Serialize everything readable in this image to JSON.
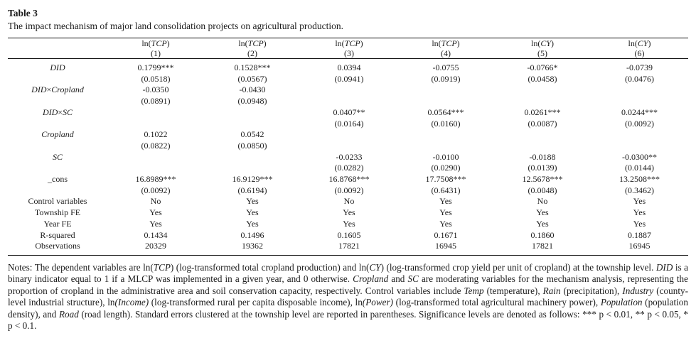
{
  "title": "Table 3",
  "caption": "The impact mechanism of major land consolidation projects on agricultural production.",
  "table": {
    "columns": [
      {
        "label": "ln({{TCP}})",
        "num": "(1)"
      },
      {
        "label": "ln({{TCP}})",
        "num": "(2)"
      },
      {
        "label": "ln({{TCP}})",
        "num": "(3)"
      },
      {
        "label": "ln({{TCP}})",
        "num": "(4)"
      },
      {
        "label": "ln({{CY}})",
        "num": "(5)"
      },
      {
        "label": "ln({{CY}})",
        "num": "(6)"
      }
    ],
    "rows": [
      {
        "label": "{{DID}}",
        "c": [
          "0.1799***",
          "0.1528***",
          "0.0394",
          "-0.0755",
          "-0.0766*",
          "-0.0739"
        ]
      },
      {
        "label": "",
        "c": [
          "(0.0518)",
          "(0.0567)",
          "(0.0941)",
          "(0.0919)",
          "(0.0458)",
          "(0.0476)"
        ]
      },
      {
        "label": "{{DID}}×{{Cropland}}",
        "c": [
          "-0.0350",
          "-0.0430",
          "",
          "",
          "",
          ""
        ]
      },
      {
        "label": "",
        "c": [
          "(0.0891)",
          "(0.0948)",
          "",
          "",
          "",
          ""
        ]
      },
      {
        "label": "{{DID}}×{{SC}}",
        "c": [
          "",
          "",
          "0.0407**",
          "0.0564***",
          "0.0261***",
          "0.0244***"
        ]
      },
      {
        "label": "",
        "c": [
          "",
          "",
          "(0.0164)",
          "(0.0160)",
          "(0.0087)",
          "(0.0092)"
        ]
      },
      {
        "label": "{{Cropland}}",
        "c": [
          "0.1022",
          "0.0542",
          "",
          "",
          "",
          ""
        ]
      },
      {
        "label": "",
        "c": [
          "(0.0822)",
          "(0.0850)",
          "",
          "",
          "",
          ""
        ]
      },
      {
        "label": "{{SC}}",
        "c": [
          "",
          "",
          "-0.0233",
          "-0.0100",
          "-0.0188",
          "-0.0300**"
        ]
      },
      {
        "label": "",
        "c": [
          "",
          "",
          "(0.0282)",
          "(0.0290)",
          "(0.0139)",
          "(0.0144)"
        ]
      },
      {
        "label": "_cons",
        "c": [
          "16.8989***",
          "16.9129***",
          "16.8768***",
          "17.7508***",
          "12.5678***",
          "13.2508***"
        ]
      },
      {
        "label": "",
        "c": [
          "(0.0092)",
          "(0.6194)",
          "(0.0092)",
          "(0.6431)",
          "(0.0048)",
          "(0.3462)"
        ]
      },
      {
        "label": "Control variables",
        "c": [
          "No",
          "Yes",
          "No",
          "Yes",
          "No",
          "Yes"
        ]
      },
      {
        "label": "Township FE",
        "c": [
          "Yes",
          "Yes",
          "Yes",
          "Yes",
          "Yes",
          "Yes"
        ]
      },
      {
        "label": "Year FE",
        "c": [
          "Yes",
          "Yes",
          "Yes",
          "Yes",
          "Yes",
          "Yes"
        ]
      },
      {
        "label": "R-squared",
        "c": [
          "0.1434",
          "0.1496",
          "0.1605",
          "0.1671",
          "0.1860",
          "0.1887"
        ]
      },
      {
        "label": "Observations",
        "c": [
          "20329",
          "19362",
          "17821",
          "16945",
          "17821",
          "16945"
        ]
      }
    ]
  },
  "notes": "Notes: The dependent variables are ln({{TCP}}) (log-transformed total cropland production) and ln({{CY}}) (log-transformed crop yield per unit of cropland) at the township level. {{DID}} is a binary indicator equal to 1 if a MLCP was implemented in a given year, and 0 otherwise. {{Cropland}} and {{SC}} are moderating variables for the mechanism analysis, representing the proportion of cropland in the administrative area and soil conservation capacity, respectively. Control variables include {{Temp}} (temperature), {{Rain}} (precipitation), {{Industry}} (county-level industrial structure), ln{{(Income)}} (log-transformed rural per capita disposable income), ln{{(Power)}} (log-transformed total agricultural machinery power), {{Population}} (population density), and {{Road}} (road length). Standard errors clustered at the township level are reported in parentheses. Significance levels are denoted as follows: *** p < 0.01, ** p < 0.05, * p < 0.1."
}
